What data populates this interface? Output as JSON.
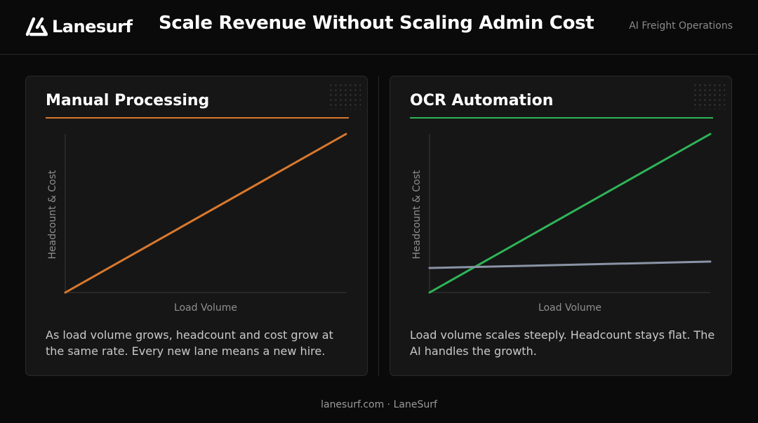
{
  "header": {
    "brand": "Lanesurf",
    "headline": "Scale Revenue Without Scaling Admin Cost",
    "tagline": "AI Freight Operations",
    "logo_icon": "lanesurf-logo-icon"
  },
  "colors": {
    "manual": "#d9782d",
    "automation_volume": "#2fb457",
    "automation_headcount": "#8a94a6",
    "axis": "#3a3a3a",
    "background": "#0a0a0a",
    "card": "#161616"
  },
  "panels": [
    {
      "title": "Manual Processing",
      "accent": "#d9782d",
      "description": "As load volume grows, headcount and cost grow at the same rate. Every new lane means a new hire."
    },
    {
      "title": "OCR Automation",
      "accent": "#2fb457",
      "description": "Load volume scales steeply. Headcount stays flat. The AI handles the growth."
    }
  ],
  "chart_data": [
    {
      "type": "line",
      "xlabel": "Load Volume",
      "ylabel": "Headcount & Cost",
      "xlim": [
        0,
        1
      ],
      "ylim": [
        0,
        1
      ],
      "grid": false,
      "series": [
        {
          "color": "#d9782d",
          "x": [
            0,
            1
          ],
          "y": [
            0,
            1
          ]
        }
      ]
    },
    {
      "type": "line",
      "xlabel": "Load Volume",
      "ylabel": "Headcount & Cost",
      "xlim": [
        0,
        1
      ],
      "ylim": [
        0,
        1
      ],
      "grid": false,
      "series": [
        {
          "color": "#2fb457",
          "x": [
            0,
            1
          ],
          "y": [
            0,
            1
          ]
        },
        {
          "color": "#8a94a6",
          "x": [
            0,
            1
          ],
          "y": [
            0.155,
            0.195
          ]
        }
      ]
    }
  ],
  "footer": {
    "text": "lanesurf.com · LaneSurf"
  }
}
